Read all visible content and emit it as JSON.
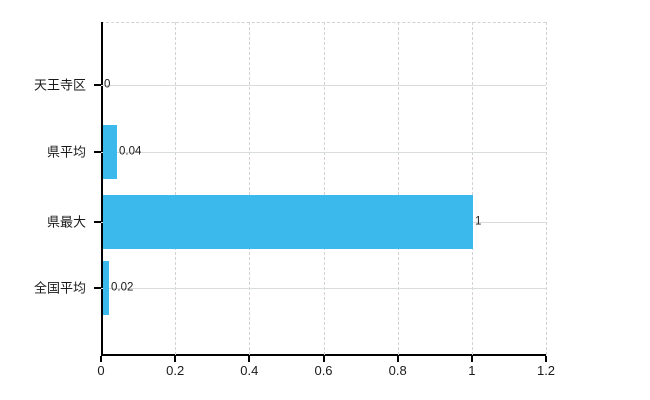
{
  "chart_data": {
    "type": "bar",
    "orientation": "horizontal",
    "title": "",
    "categories": [
      "天王寺区",
      "県平均",
      "県最大",
      "全国平均"
    ],
    "values": [
      0,
      0.04,
      1,
      0.02
    ],
    "value_labels": [
      "0",
      "0.04",
      "1",
      "0.02"
    ],
    "xlim": [
      0,
      1.2
    ],
    "x_tick_values": [
      0,
      0.2,
      0.4,
      0.6,
      0.8,
      1,
      1.2
    ],
    "x_tick_labels": [
      "0",
      "0.2",
      "0.4",
      "0.6",
      "0.8",
      "1",
      "1.2"
    ],
    "grid": true,
    "legend": false,
    "colors": {
      "bar": "#3bb9ec",
      "axis": "#000000",
      "vertical_gridline": "#d5d0d6",
      "horizontal_gridline": "#d9ddd9",
      "text": "#1a1a1a",
      "background": "#ffffff"
    }
  }
}
